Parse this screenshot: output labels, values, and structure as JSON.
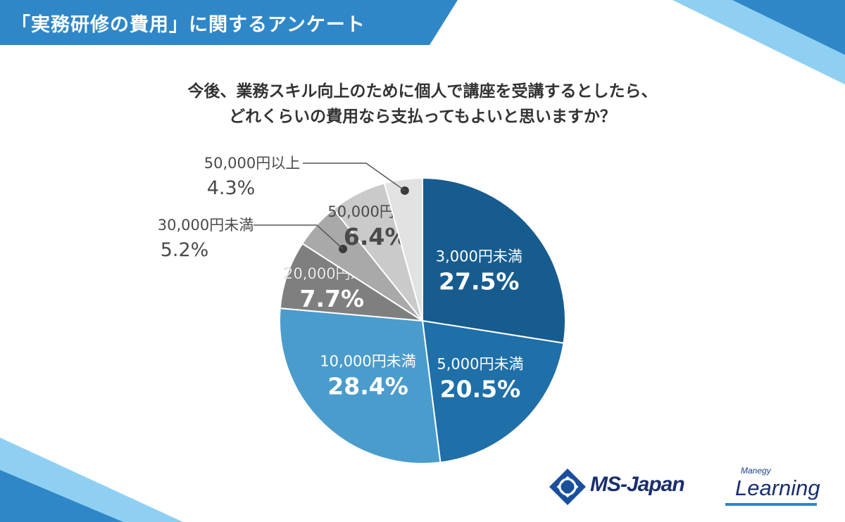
{
  "header": {
    "title": "「実務研修の費用」に関するアンケート"
  },
  "question": {
    "line1": "今後、業務スキル向上のために個人で講座を受講するとしたら、",
    "line2": "どれくらいの費用なら支払ってもよいと思いますか？"
  },
  "brands": {
    "ms_japan": "MS-Japan",
    "learning_small": "Manegy",
    "learning_word": "Learning"
  },
  "colors": {
    "accent_blue": "#2f87c8",
    "light_blue": "#7fc6ee",
    "text_dark": "#333333"
  },
  "chart_data": {
    "type": "pie",
    "start": "12 o'clock",
    "direction": "clockwise",
    "slices": [
      {
        "label": "3,000円未満",
        "value": 27.5,
        "display": "27.5%",
        "color": "#175c8f"
      },
      {
        "label": "5,000円未満",
        "value": 20.5,
        "display": "20.5%",
        "color": "#1f6fa8"
      },
      {
        "label": "10,000円未満",
        "value": 28.4,
        "display": "28.4%",
        "color": "#4a9ccc"
      },
      {
        "label": "20,000円未満",
        "value": 7.7,
        "display": "7.7%",
        "color": "#7f7f7f"
      },
      {
        "label": "30,000円未満",
        "value": 5.2,
        "display": "5.2%",
        "color": "#a9a9a9"
      },
      {
        "label": "50,000円未満",
        "value": 6.4,
        "display": "6.4%",
        "color": "#cacaca"
      },
      {
        "label": "50,000円以上",
        "value": 4.3,
        "display": "4.3%",
        "color": "#e2e2e2"
      }
    ]
  }
}
